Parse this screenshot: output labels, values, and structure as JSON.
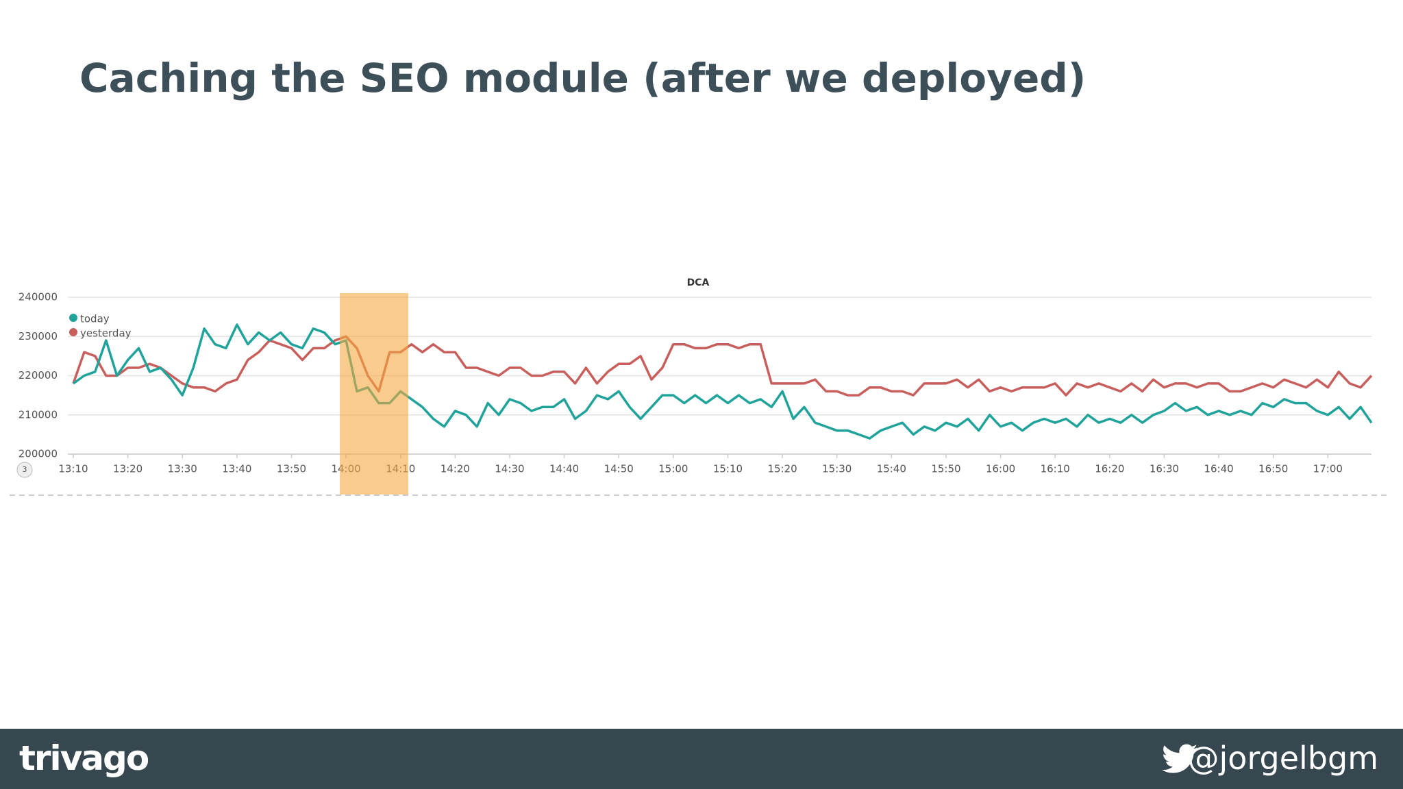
{
  "slide_title": "Caching the SEO module (after we deployed)",
  "footer": {
    "logo": "trivago",
    "handle": "@jorgelbgm"
  },
  "badge": "3",
  "chart_data": {
    "type": "line",
    "title": "DCA",
    "x": [
      "13:10",
      "13:12",
      "13:14",
      "13:16",
      "13:18",
      "13:20",
      "13:22",
      "13:24",
      "13:26",
      "13:28",
      "13:30",
      "13:32",
      "13:34",
      "13:36",
      "13:38",
      "13:40",
      "13:42",
      "13:44",
      "13:46",
      "13:48",
      "13:50",
      "13:52",
      "13:54",
      "13:56",
      "13:58",
      "14:00",
      "14:02",
      "14:04",
      "14:06",
      "14:08",
      "14:10",
      "14:12",
      "14:14",
      "14:16",
      "14:18",
      "14:20",
      "14:22",
      "14:24",
      "14:26",
      "14:28",
      "14:30",
      "14:32",
      "14:34",
      "14:36",
      "14:38",
      "14:40",
      "14:42",
      "14:44",
      "14:46",
      "14:48",
      "14:50",
      "14:52",
      "14:54",
      "14:56",
      "14:58",
      "15:00",
      "15:02",
      "15:04",
      "15:06",
      "15:08",
      "15:10",
      "15:12",
      "15:14",
      "15:16",
      "15:18",
      "15:20",
      "15:22",
      "15:24",
      "15:26",
      "15:28",
      "15:30",
      "15:32",
      "15:34",
      "15:36",
      "15:38",
      "15:40",
      "15:42",
      "15:44",
      "15:46",
      "15:48",
      "15:50",
      "15:52",
      "15:54",
      "15:56",
      "15:58",
      "16:00",
      "16:02",
      "16:04",
      "16:06",
      "16:08",
      "16:10",
      "16:12",
      "16:14",
      "16:16",
      "16:18",
      "16:20",
      "16:22",
      "16:24",
      "16:26",
      "16:28",
      "16:30",
      "16:32",
      "16:34",
      "16:36",
      "16:38",
      "16:40",
      "16:42",
      "16:44",
      "16:46",
      "16:48",
      "16:50",
      "16:52",
      "16:54",
      "16:56",
      "16:58",
      "17:00",
      "17:02",
      "17:04",
      "17:06",
      "17:08"
    ],
    "series": [
      {
        "name": "today",
        "color": "#1fa39a",
        "values": [
          218000,
          220000,
          221000,
          229000,
          220000,
          224000,
          227000,
          221000,
          222000,
          219000,
          215000,
          222000,
          232000,
          228000,
          227000,
          233000,
          228000,
          231000,
          229000,
          231000,
          228000,
          227000,
          232000,
          231000,
          228000,
          229000,
          216000,
          217000,
          213000,
          213000,
          216000,
          214000,
          212000,
          209000,
          207000,
          211000,
          210000,
          207000,
          213000,
          210000,
          214000,
          213000,
          211000,
          212000,
          212000,
          214000,
          209000,
          211000,
          215000,
          214000,
          216000,
          212000,
          209000,
          212000,
          215000,
          215000,
          213000,
          215000,
          213000,
          215000,
          213000,
          215000,
          213000,
          214000,
          212000,
          216000,
          209000,
          212000,
          208000,
          207000,
          206000,
          206000,
          205000,
          204000,
          206000,
          207000,
          208000,
          205000,
          207000,
          206000,
          208000,
          207000,
          209000,
          206000,
          210000,
          207000,
          208000,
          206000,
          208000,
          209000,
          208000,
          209000,
          207000,
          210000,
          208000,
          209000,
          208000,
          210000,
          208000,
          210000,
          211000,
          213000,
          211000,
          212000,
          210000,
          211000,
          210000,
          211000,
          210000,
          213000,
          212000,
          214000,
          213000,
          213000,
          211000,
          210000,
          212000,
          209000,
          212000,
          208000
        ]
      },
      {
        "name": "yesterday",
        "color": "#c95f5d",
        "values": [
          218000,
          226000,
          225000,
          220000,
          220000,
          222000,
          222000,
          223000,
          222000,
          220000,
          218000,
          217000,
          217000,
          216000,
          218000,
          219000,
          224000,
          226000,
          229000,
          228000,
          227000,
          224000,
          227000,
          227000,
          229000,
          230000,
          227000,
          220000,
          216000,
          226000,
          226000,
          228000,
          226000,
          228000,
          226000,
          226000,
          222000,
          222000,
          221000,
          220000,
          222000,
          222000,
          220000,
          220000,
          221000,
          221000,
          218000,
          222000,
          218000,
          221000,
          223000,
          223000,
          225000,
          219000,
          222000,
          228000,
          228000,
          227000,
          227000,
          228000,
          228000,
          227000,
          228000,
          228000,
          218000,
          218000,
          218000,
          218000,
          219000,
          216000,
          216000,
          215000,
          215000,
          217000,
          217000,
          216000,
          216000,
          215000,
          218000,
          218000,
          218000,
          219000,
          217000,
          219000,
          216000,
          217000,
          216000,
          217000,
          217000,
          217000,
          218000,
          215000,
          218000,
          217000,
          218000,
          217000,
          216000,
          218000,
          216000,
          219000,
          217000,
          218000,
          218000,
          217000,
          218000,
          218000,
          216000,
          216000,
          217000,
          218000,
          217000,
          219000,
          218000,
          217000,
          219000,
          217000,
          221000,
          218000,
          217000,
          220000
        ]
      }
    ],
    "ylim": [
      200000,
      240000
    ],
    "yticks": [
      200000,
      210000,
      220000,
      230000,
      240000
    ],
    "xticks": [
      "13:10",
      "13:20",
      "13:30",
      "13:40",
      "13:50",
      "14:00",
      "14:10",
      "14:20",
      "14:30",
      "14:40",
      "14:50",
      "15:00",
      "15:10",
      "15:20",
      "15:30",
      "15:40",
      "15:50",
      "16:00",
      "16:10",
      "16:20",
      "16:30",
      "16:40",
      "16:50",
      "17:00"
    ],
    "grid": true,
    "legend": "top-left"
  }
}
